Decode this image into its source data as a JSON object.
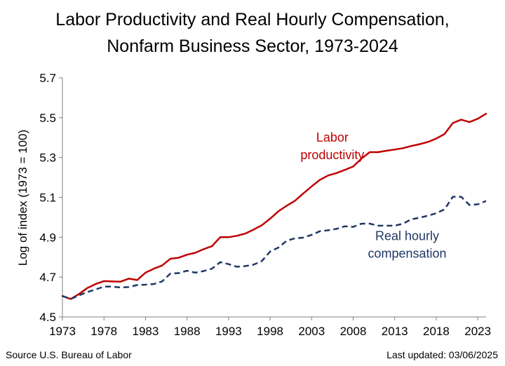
{
  "chart_data": {
    "type": "line",
    "title": [
      "Labor Productivity and Real Hourly Compensation,",
      "Nonfarm Business Sector, 1973-2024"
    ],
    "xlabel": "",
    "ylabel": "Log of index (1973 = 100)",
    "xlim": [
      1973,
      2024
    ],
    "ylim": [
      4.5,
      5.7
    ],
    "yticks": [
      "4.5",
      "4.7",
      "4.9",
      "5.1",
      "5.3",
      "5.5",
      "5.7"
    ],
    "xticks": [
      "1973",
      "1978",
      "1983",
      "1988",
      "1993",
      "1998",
      "2003",
      "2008",
      "2013",
      "2018",
      "2023"
    ],
    "grid": false,
    "series": [
      {
        "name": "Labor productivity",
        "label_lines": [
          "Labor",
          "productivity"
        ],
        "color": "#c00000",
        "style": "solid",
        "x": [
          1973,
          1974,
          1975,
          1976,
          1977,
          1978,
          1979,
          1980,
          1981,
          1982,
          1983,
          1984,
          1985,
          1986,
          1987,
          1988,
          1989,
          1990,
          1991,
          1992,
          1993,
          1994,
          1995,
          1996,
          1997,
          1998,
          1999,
          2000,
          2001,
          2002,
          2003,
          2004,
          2005,
          2006,
          2007,
          2008,
          2009,
          2010,
          2011,
          2012,
          2013,
          2014,
          2015,
          2016,
          2017,
          2018,
          2019,
          2020,
          2021,
          2022,
          2023,
          2024
        ],
        "values": [
          4.605,
          4.59,
          4.615,
          4.645,
          4.665,
          4.68,
          4.678,
          4.677,
          4.692,
          4.685,
          4.722,
          4.742,
          4.758,
          4.792,
          4.797,
          4.812,
          4.822,
          4.84,
          4.855,
          4.9,
          4.9,
          4.907,
          4.918,
          4.938,
          4.96,
          4.993,
          5.03,
          5.058,
          5.083,
          5.12,
          5.155,
          5.188,
          5.21,
          5.222,
          5.238,
          5.255,
          5.295,
          5.327,
          5.327,
          5.334,
          5.34,
          5.347,
          5.358,
          5.367,
          5.378,
          5.395,
          5.418,
          5.473,
          5.49,
          5.478,
          5.495,
          5.52
        ]
      },
      {
        "name": "Real hourly compensation",
        "label_lines": [
          "Real hourly",
          "compensation"
        ],
        "color": "#1f3864",
        "style": "dashed",
        "x": [
          1973,
          1974,
          1975,
          1976,
          1977,
          1978,
          1979,
          1980,
          1981,
          1982,
          1983,
          1984,
          1985,
          1986,
          1987,
          1988,
          1989,
          1990,
          1991,
          1992,
          1993,
          1994,
          1995,
          1996,
          1997,
          1998,
          1999,
          2000,
          2001,
          2002,
          2003,
          2004,
          2005,
          2006,
          2007,
          2008,
          2009,
          2010,
          2011,
          2012,
          2013,
          2014,
          2015,
          2016,
          2017,
          2018,
          2019,
          2020,
          2021,
          2022,
          2023,
          2024
        ],
        "values": [
          4.605,
          4.59,
          4.608,
          4.625,
          4.638,
          4.652,
          4.652,
          4.648,
          4.65,
          4.66,
          4.662,
          4.665,
          4.678,
          4.718,
          4.72,
          4.732,
          4.722,
          4.73,
          4.742,
          4.775,
          4.765,
          4.752,
          4.755,
          4.762,
          4.78,
          4.828,
          4.848,
          4.882,
          4.895,
          4.898,
          4.912,
          4.93,
          4.935,
          4.942,
          4.955,
          4.952,
          4.968,
          4.968,
          4.958,
          4.958,
          4.958,
          4.968,
          4.99,
          4.998,
          5.008,
          5.02,
          5.04,
          5.103,
          5.103,
          5.062,
          5.065,
          5.082
        ]
      }
    ]
  },
  "footer": {
    "source": "Source U.S. Bureau of Labor",
    "updated": "Last updated: 03/06/2025"
  }
}
